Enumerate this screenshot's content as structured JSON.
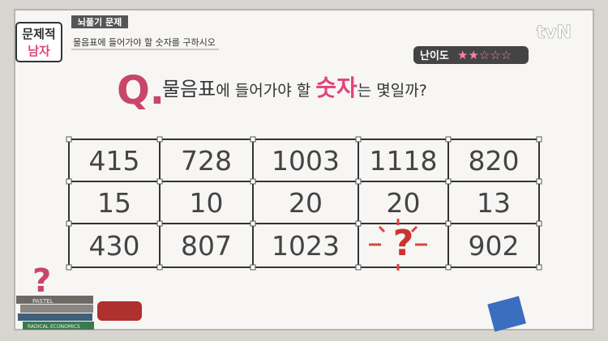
{
  "logo": {
    "line1": "문제적",
    "line2": "남자"
  },
  "badge": "뇌풀기 문제",
  "instruction": "물음표에 들어가야 할 숫자를 구하시오",
  "channel": "tvN",
  "difficulty": {
    "label": "난이도",
    "stars": "★★☆☆☆"
  },
  "question": {
    "marker": "Q.",
    "parts": [
      "물음표",
      "에 들어가야 할 ",
      "숫자",
      "는 몇일까?"
    ]
  },
  "table": {
    "rows": [
      [
        415,
        728,
        1003,
        1118,
        820
      ],
      [
        15,
        10,
        20,
        20,
        13
      ],
      [
        430,
        807,
        1023,
        "?",
        902
      ]
    ]
  },
  "books": [
    "PASTEL",
    "RADICAL ECONOMICS"
  ]
}
